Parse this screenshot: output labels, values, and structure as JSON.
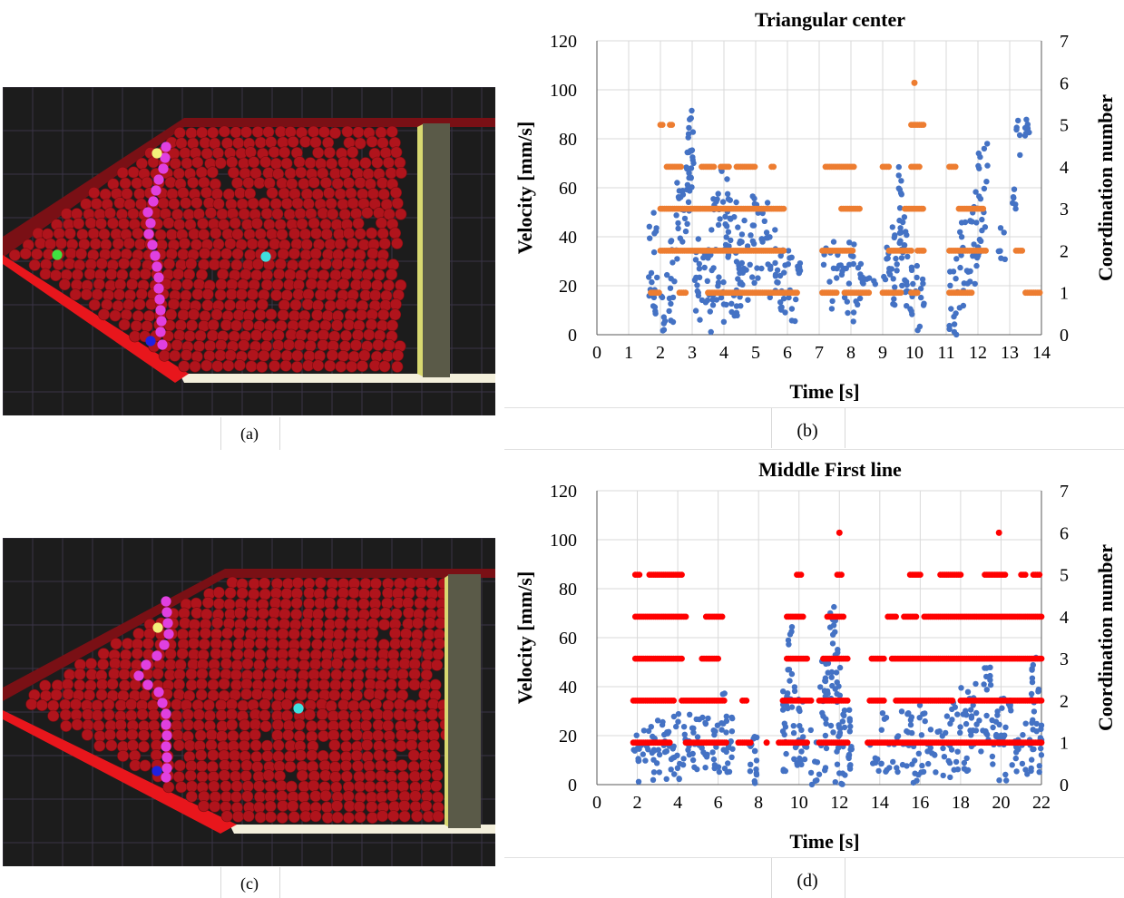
{
  "captions": {
    "a": "(a)",
    "b": "(b)",
    "c": "(c)",
    "d": "(d)"
  },
  "colors": {
    "velocity": "#4472c4",
    "coordination_b": "#ed7d31",
    "coordination_d": "#ff0000",
    "particle": "#b0141c",
    "sim_background": "#1c1c1c",
    "wall": "#e8161c",
    "top_wall": "#7a1015",
    "piston": "#5a5a48",
    "piston_edge": "#d8d870",
    "floor": "#f4f0dc",
    "tracked_chain": "#e040e0",
    "marker_yellow": "#f4f07a",
    "marker_green": "#40e040",
    "marker_cyan": "#40e0e0",
    "marker_blue": "#2020e0"
  },
  "chart_data": [
    {
      "id": "b",
      "type": "scatter",
      "title": "Triangular center",
      "xlabel": "Time [s]",
      "ylabel": "Velocity [mm/s]",
      "y2label": "Coordination number",
      "xlim": [
        0,
        14
      ],
      "ylim": [
        0,
        120
      ],
      "y2lim": [
        0,
        7
      ],
      "xticks": [
        0,
        1,
        2,
        3,
        4,
        5,
        6,
        7,
        8,
        9,
        10,
        11,
        12,
        13,
        14
      ],
      "yticks": [
        0,
        20,
        40,
        60,
        80,
        100,
        120
      ],
      "y2ticks": [
        0,
        1,
        2,
        3,
        4,
        5,
        6,
        7
      ],
      "grid": true,
      "velocity_envelope": [
        [
          1.6,
          0,
          50
        ],
        [
          1.9,
          0,
          18
        ],
        [
          2.2,
          5,
          40
        ],
        [
          2.5,
          20,
          65
        ],
        [
          2.8,
          45,
          88
        ],
        [
          2.95,
          60,
          92
        ],
        [
          3.05,
          5,
          40
        ],
        [
          3.3,
          0,
          35
        ],
        [
          3.6,
          10,
          60
        ],
        [
          3.9,
          5,
          68
        ],
        [
          4.2,
          5,
          55
        ],
        [
          4.5,
          10,
          50
        ],
        [
          4.8,
          20,
          58
        ],
        [
          5.1,
          25,
          55
        ],
        [
          5.4,
          15,
          45
        ],
        [
          5.7,
          10,
          40
        ],
        [
          5.9,
          5,
          35
        ],
        [
          6.3,
          25,
          30
        ],
        [
          7.1,
          10,
          38
        ],
        [
          7.5,
          20,
          40
        ],
        [
          7.8,
          5,
          38
        ],
        [
          8.1,
          5,
          30
        ],
        [
          8.4,
          20,
          24
        ],
        [
          9.1,
          10,
          50
        ],
        [
          9.4,
          25,
          70
        ],
        [
          9.6,
          10,
          55
        ],
        [
          9.9,
          0,
          30
        ],
        [
          10.2,
          10,
          25
        ],
        [
          11.1,
          0,
          35
        ],
        [
          11.4,
          10,
          50
        ],
        [
          11.7,
          20,
          60
        ],
        [
          12.0,
          30,
          80
        ],
        [
          12.3,
          30,
          45
        ],
        [
          13.0,
          50,
          60
        ],
        [
          13.2,
          70,
          88
        ],
        [
          13.5,
          82,
          88
        ]
      ],
      "coordination_segments": [
        {
          "level": 1,
          "ranges": [
            [
              1.7,
              2.0
            ],
            [
              2.6,
              2.8
            ],
            [
              3.5,
              6.3
            ],
            [
              7.1,
              7.6
            ],
            [
              7.8,
              8.6
            ],
            [
              9.0,
              9.6
            ],
            [
              9.9,
              10.1
            ],
            [
              11.1,
              11.8
            ],
            [
              13.5,
              14.0
            ]
          ]
        },
        {
          "level": 2,
          "ranges": [
            [
              2.0,
              5.9
            ],
            [
              7.1,
              8.1
            ],
            [
              9.2,
              9.9
            ],
            [
              10.1,
              10.3
            ],
            [
              11.1,
              12.3
            ],
            [
              13.2,
              13.4
            ]
          ]
        },
        {
          "level": 3,
          "ranges": [
            [
              2.0,
              5.9
            ],
            [
              7.7,
              8.3
            ],
            [
              9.7,
              10.3
            ],
            [
              11.4,
              12.2
            ]
          ]
        },
        {
          "level": 4,
          "ranges": [
            [
              2.2,
              2.7
            ],
            [
              3.3,
              3.7
            ],
            [
              3.9,
              4.2
            ],
            [
              4.4,
              5.0
            ],
            [
              5.5,
              5.6
            ],
            [
              7.2,
              8.1
            ],
            [
              9.0,
              9.2
            ],
            [
              9.9,
              10.2
            ],
            [
              11.1,
              11.3
            ]
          ]
        },
        {
          "level": 5,
          "ranges": [
            [
              2.0,
              2.1
            ],
            [
              2.3,
              2.4
            ],
            [
              9.9,
              10.3
            ]
          ]
        },
        {
          "level": 6,
          "ranges": [
            [
              10.0,
              10.0
            ]
          ]
        }
      ]
    },
    {
      "id": "d",
      "type": "scatter",
      "title": "Middle First line",
      "xlabel": "Time [s]",
      "ylabel": "Velocity [mm/s]",
      "y2label": "Coordination number",
      "xlim": [
        0,
        22
      ],
      "ylim": [
        0,
        120
      ],
      "y2lim": [
        0,
        7
      ],
      "xticks": [
        0,
        2,
        4,
        6,
        8,
        10,
        12,
        14,
        16,
        18,
        20,
        22
      ],
      "yticks": [
        0,
        20,
        40,
        60,
        80,
        100,
        120
      ],
      "y2ticks": [
        0,
        1,
        2,
        3,
        4,
        5,
        6,
        7
      ],
      "grid": true,
      "velocity_envelope": [
        [
          1.8,
          0,
          22
        ],
        [
          2.2,
          5,
          25
        ],
        [
          2.6,
          0,
          25
        ],
        [
          3.0,
          5,
          30
        ],
        [
          3.4,
          0,
          25
        ],
        [
          3.8,
          0,
          30
        ],
        [
          4.2,
          5,
          30
        ],
        [
          4.6,
          5,
          30
        ],
        [
          5.0,
          5,
          30
        ],
        [
          5.4,
          5,
          28
        ],
        [
          5.8,
          5,
          30
        ],
        [
          6.2,
          5,
          40
        ],
        [
          6.6,
          10,
          28
        ],
        [
          7.4,
          5,
          20
        ],
        [
          7.8,
          0,
          25
        ],
        [
          9.2,
          5,
          40
        ],
        [
          9.4,
          30,
          65
        ],
        [
          9.7,
          5,
          40
        ],
        [
          10.0,
          5,
          35
        ],
        [
          10.3,
          0,
          25
        ],
        [
          11.0,
          5,
          55
        ],
        [
          11.4,
          20,
          78
        ],
        [
          11.8,
          0,
          60
        ],
        [
          12.1,
          0,
          35
        ],
        [
          12.5,
          5,
          30
        ],
        [
          13.5,
          5,
          20
        ],
        [
          14.0,
          5,
          30
        ],
        [
          14.5,
          5,
          20
        ],
        [
          15.0,
          5,
          30
        ],
        [
          15.5,
          0,
          35
        ],
        [
          16.0,
          5,
          30
        ],
        [
          16.5,
          5,
          25
        ],
        [
          17.0,
          0,
          30
        ],
        [
          17.5,
          5,
          35
        ],
        [
          18.0,
          5,
          40
        ],
        [
          18.5,
          10,
          45
        ],
        [
          19.0,
          10,
          50
        ],
        [
          19.5,
          0,
          35
        ],
        [
          20.0,
          0,
          40
        ],
        [
          20.5,
          5,
          30
        ],
        [
          21.0,
          0,
          25
        ],
        [
          21.5,
          0,
          55
        ],
        [
          21.9,
          5,
          25
        ]
      ],
      "coordination_segments": [
        {
          "level": 1,
          "ranges": [
            [
              1.8,
              3.6
            ],
            [
              4.4,
              6.4
            ],
            [
              7.0,
              7.6
            ],
            [
              8.4,
              8.4
            ],
            [
              9.0,
              10.4
            ],
            [
              11.0,
              12.4
            ],
            [
              13.4,
              22.0
            ]
          ]
        },
        {
          "level": 2,
          "ranges": [
            [
              1.8,
              3.8
            ],
            [
              4.2,
              6.3
            ],
            [
              7.2,
              7.4
            ],
            [
              9.2,
              10.6
            ],
            [
              11.0,
              12.4
            ],
            [
              13.5,
              14.2
            ],
            [
              14.8,
              17.6
            ],
            [
              18.0,
              22.0
            ]
          ]
        },
        {
          "level": 3,
          "ranges": [
            [
              1.9,
              4.2
            ],
            [
              5.2,
              6.0
            ],
            [
              9.4,
              10.4
            ],
            [
              11.2,
              12.4
            ],
            [
              13.6,
              14.2
            ],
            [
              14.6,
              22.0
            ]
          ]
        },
        {
          "level": 4,
          "ranges": [
            [
              1.9,
              4.4
            ],
            [
              5.4,
              6.2
            ],
            [
              9.4,
              10.2
            ],
            [
              11.4,
              12.2
            ],
            [
              14.4,
              14.8
            ],
            [
              15.2,
              15.8
            ],
            [
              16.2,
              22.0
            ]
          ]
        },
        {
          "level": 5,
          "ranges": [
            [
              1.9,
              2.1
            ],
            [
              2.6,
              4.2
            ],
            [
              9.9,
              10.1
            ],
            [
              11.9,
              12.1
            ],
            [
              15.5,
              16.0
            ],
            [
              17.0,
              18.0
            ],
            [
              19.2,
              20.2
            ],
            [
              21.0,
              21.2
            ],
            [
              21.6,
              21.9
            ]
          ]
        },
        {
          "level": 6,
          "ranges": [
            [
              12.0,
              12.0
            ],
            [
              19.9,
              19.9
            ]
          ]
        }
      ]
    }
  ]
}
